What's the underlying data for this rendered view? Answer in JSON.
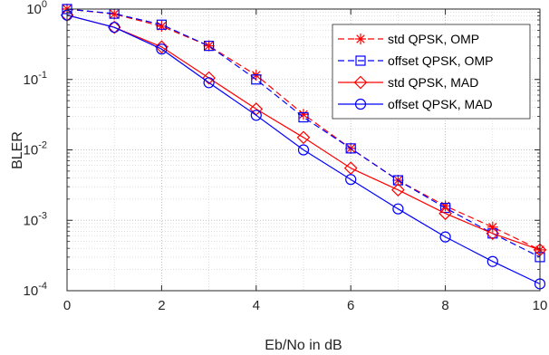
{
  "chart_data": {
    "type": "line",
    "title": "",
    "xlabel": "Eb/No in dB",
    "ylabel": "BLER",
    "x": [
      0,
      1,
      2,
      3,
      4,
      5,
      6,
      7,
      8,
      9,
      10
    ],
    "xlim": [
      0,
      10
    ],
    "xticks": [
      0,
      2,
      4,
      6,
      8,
      10
    ],
    "ylim": [
      0.0001,
      1
    ],
    "yscale": "log",
    "yticks": [
      {
        "base": "10",
        "exp": "-4",
        "value": 0.0001
      },
      {
        "base": "10",
        "exp": "-3",
        "value": 0.001
      },
      {
        "base": "10",
        "exp": "-2",
        "value": 0.01
      },
      {
        "base": "10",
        "exp": "-1",
        "value": 0.1
      },
      {
        "base": "10",
        "exp": "0",
        "value": 1
      }
    ],
    "grid": true,
    "minor_grid": true,
    "legend_position": "top-right",
    "series": [
      {
        "name": "std QPSK, OMP",
        "color": "#ff0000",
        "dash": "dashed",
        "marker": "asterisk",
        "values": [
          1.0,
          0.85,
          0.57,
          0.3,
          0.115,
          0.032,
          0.0105,
          0.0037,
          0.0016,
          0.0008,
          0.00038
        ]
      },
      {
        "name": "offset QPSK, OMP",
        "color": "#0000ff",
        "dash": "dashed",
        "marker": "square",
        "values": [
          1.0,
          0.86,
          0.6,
          0.3,
          0.1,
          0.029,
          0.0105,
          0.0037,
          0.0015,
          0.00065,
          0.0003
        ]
      },
      {
        "name": "std QPSK, MAD",
        "color": "#ff0000",
        "dash": "solid",
        "marker": "diamond",
        "values": [
          0.82,
          0.55,
          0.29,
          0.105,
          0.038,
          0.015,
          0.0055,
          0.0027,
          0.00125,
          0.00065,
          0.00038
        ]
      },
      {
        "name": "offset QPSK, MAD",
        "color": "#0000ff",
        "dash": "solid",
        "marker": "circle",
        "values": [
          0.82,
          0.55,
          0.27,
          0.09,
          0.031,
          0.01,
          0.0038,
          0.00145,
          0.00058,
          0.00026,
          0.000125
        ]
      }
    ]
  }
}
